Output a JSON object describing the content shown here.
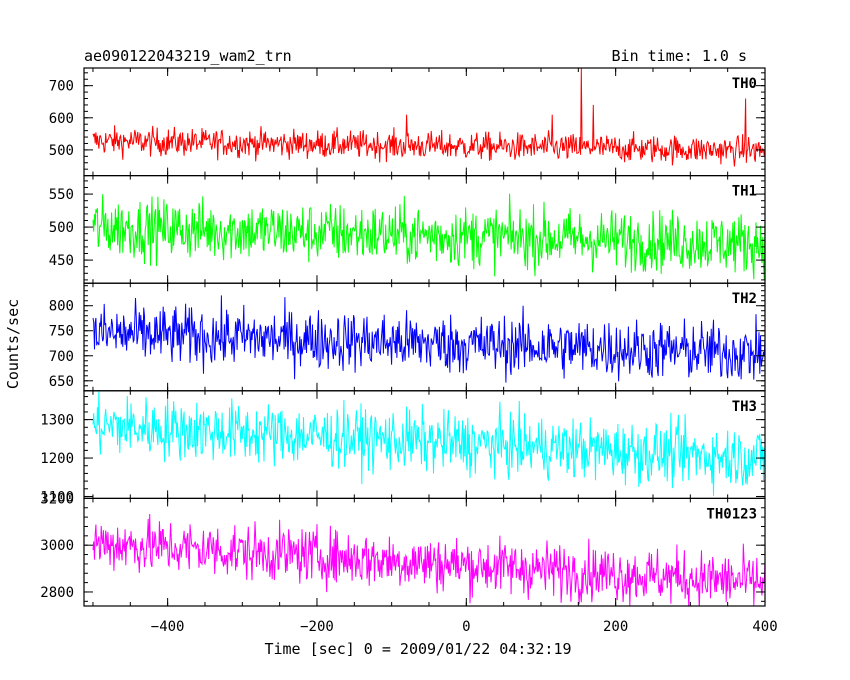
{
  "header": {
    "title": "ae090122043219_wam2_trn",
    "bin_time": "Bin time: 1.0 s"
  },
  "chart_data": {
    "type": "line",
    "xlabel": "Time [sec] 0 = 2009/01/22 04:32:19",
    "ylabel": "Counts/sec",
    "xlim": [
      -512,
      400
    ],
    "x_ticks": [
      -400,
      -200,
      0,
      200,
      400
    ],
    "x_tick_labels": [
      "−400",
      "−200",
      "0",
      "200",
      "400"
    ],
    "bin_time_s": 1.0,
    "panels": [
      {
        "name": "TH0",
        "color": "#ff0000",
        "ylim": [
          420,
          755
        ],
        "y_ticks": [
          500,
          600,
          700
        ],
        "y_tick_labels": [
          "500",
          "600",
          "700"
        ],
        "mean_start": 528,
        "mean_end": 498,
        "noise": 22,
        "spikes": [
          {
            "x": 154,
            "y": 755
          },
          {
            "x": 374,
            "y": 660
          },
          {
            "x": 170,
            "y": 640
          },
          {
            "x": 115,
            "y": 610
          },
          {
            "x": -80,
            "y": 610
          }
        ]
      },
      {
        "name": "TH1",
        "color": "#00ff00",
        "ylim": [
          415,
          578
        ],
        "y_ticks": [
          450,
          500,
          550
        ],
        "y_tick_labels": [
          "450",
          "500",
          "550"
        ],
        "mean_start": 500,
        "mean_end": 475,
        "noise": 23
      },
      {
        "name": "TH2",
        "color": "#0000ff",
        "ylim": [
          630,
          845
        ],
        "y_ticks": [
          650,
          700,
          750,
          800
        ],
        "y_tick_labels": [
          "650",
          "700",
          "750",
          "800"
        ],
        "mean_start": 745,
        "mean_end": 705,
        "noise": 30
      },
      {
        "name": "TH3",
        "color": "#00ffff",
        "ylim": [
          1095,
          1375
        ],
        "y_ticks": [
          1100,
          1200,
          1300
        ],
        "y_tick_labels": [
          "1100",
          "1200",
          "1300"
        ],
        "mean_start": 1285,
        "mean_end": 1200,
        "noise": 40
      },
      {
        "name": "TH0123",
        "color": "#ff00ff",
        "ylim": [
          2740,
          3200
        ],
        "y_ticks": [
          2800,
          3000,
          3200
        ],
        "y_tick_labels": [
          "2800",
          "3000",
          "3200"
        ],
        "mean_start": 3010,
        "mean_end": 2840,
        "noise": 60
      }
    ]
  }
}
